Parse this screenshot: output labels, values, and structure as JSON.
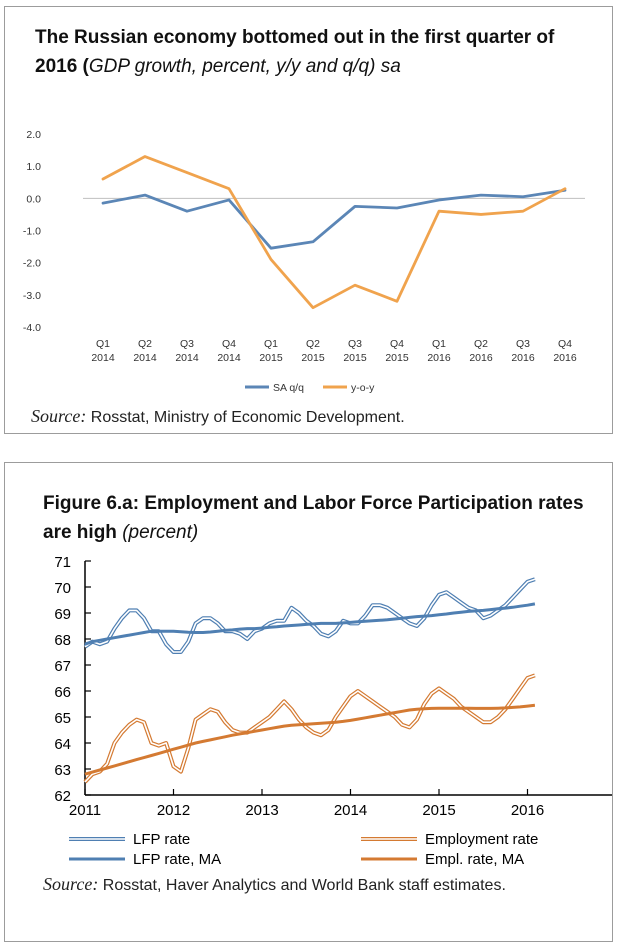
{
  "chart1": {
    "title_bold": "The Russian economy bottomed out in the first quarter of 2016 (",
    "title_italic": "GDP growth, percent, y/y and q/q) sa",
    "source_label": "Source:",
    "source_text": " Rosstat, Ministry of Economic Development.",
    "colors": {
      "series1": "#5b86b6",
      "series2": "#f0a34d",
      "axis": "#bfbfbf"
    }
  },
  "chart2": {
    "title_bold": "Figure 6.a: Employment and Labor Force Participation rates are high ",
    "title_italic": "(percent)",
    "source_label": "Source:",
    "source_text": " Rosstat, Haver Analytics and World Bank staff estimates.",
    "colors": {
      "lfp": "#4f7fb2",
      "emp": "#d47a32",
      "axis": "#000000"
    }
  },
  "chart_data": [
    {
      "type": "line",
      "title": "The Russian economy bottomed out in the first quarter of 2016 (GDP growth, percent, y/y and q/q) sa",
      "categories": [
        "Q1 2014",
        "Q2 2014",
        "Q3 2014",
        "Q4 2014",
        "Q1 2015",
        "Q2 2015",
        "Q3 2015",
        "Q4 2015",
        "Q1 2016",
        "Q2 2016",
        "Q3 2016",
        "Q4 2016"
      ],
      "ylim": [
        -4.0,
        2.0
      ],
      "yticks": [
        "2.0",
        "1.0",
        "0.0",
        "-1.0",
        "-2.0",
        "-3.0",
        "-4.0"
      ],
      "grid": false,
      "legend": "bottom",
      "series": [
        {
          "name": "SA q/q",
          "values": [
            -0.15,
            0.1,
            -0.4,
            -0.05,
            -1.55,
            -1.35,
            -0.25,
            -0.3,
            -0.05,
            0.1,
            0.05,
            0.25
          ]
        },
        {
          "name": "y-o-y",
          "values": [
            0.6,
            1.3,
            0.8,
            0.3,
            -1.9,
            -3.4,
            -2.7,
            -3.2,
            -0.4,
            -0.5,
            -0.4,
            0.3
          ]
        }
      ]
    },
    {
      "type": "line",
      "title": "Figure 6.a: Employment and Labor Force Participation rates are high (percent)",
      "x_start": 2011,
      "xticks": [
        "2011",
        "2012",
        "2013",
        "2014",
        "2015",
        "2016"
      ],
      "ylim": [
        62,
        71
      ],
      "yticks": [
        "71",
        "70",
        "69",
        "68",
        "67",
        "66",
        "65",
        "64",
        "63",
        "62"
      ],
      "grid": false,
      "legend": "bottom",
      "series": [
        {
          "name": "LFP rate",
          "style": "double",
          "values": [
            67.7,
            67.9,
            67.8,
            67.9,
            68.4,
            68.8,
            69.1,
            69.1,
            68.8,
            68.3,
            68.3,
            67.8,
            67.5,
            67.5,
            67.9,
            68.6,
            68.8,
            68.8,
            68.6,
            68.3,
            68.3,
            68.2,
            68.0,
            68.3,
            68.4,
            68.6,
            68.7,
            68.7,
            69.2,
            69.0,
            68.7,
            68.5,
            68.2,
            68.1,
            68.3,
            68.7,
            68.6,
            68.6,
            68.9,
            69.3,
            69.3,
            69.2,
            69.0,
            68.8,
            68.6,
            68.5,
            68.8,
            69.3,
            69.7,
            69.8,
            69.6,
            69.4,
            69.2,
            69.1,
            68.8,
            68.9,
            69.1,
            69.3,
            69.6,
            69.9,
            70.2,
            70.3
          ]
        },
        {
          "name": "Employment rate",
          "style": "double",
          "values": [
            62.5,
            62.8,
            62.9,
            63.2,
            64.0,
            64.4,
            64.7,
            64.9,
            64.8,
            64.0,
            63.9,
            64.0,
            63.1,
            62.9,
            63.8,
            64.9,
            65.1,
            65.3,
            65.2,
            64.8,
            64.5,
            64.4,
            64.4,
            64.6,
            64.8,
            65.0,
            65.3,
            65.6,
            65.3,
            64.9,
            64.6,
            64.4,
            64.3,
            64.5,
            65.0,
            65.4,
            65.8,
            66.0,
            65.8,
            65.6,
            65.4,
            65.2,
            65.0,
            64.7,
            64.6,
            64.9,
            65.5,
            65.9,
            66.1,
            65.9,
            65.7,
            65.4,
            65.2,
            65.0,
            64.8,
            64.8,
            65.0,
            65.3,
            65.7,
            66.1,
            66.5,
            66.6
          ]
        },
        {
          "name": "LFP rate, MA",
          "style": "single",
          "values": [
            67.8,
            67.9,
            67.95,
            68.0,
            68.05,
            68.1,
            68.15,
            68.2,
            68.25,
            68.3,
            68.3,
            68.3,
            68.3,
            68.28,
            68.26,
            68.25,
            68.25,
            68.27,
            68.3,
            68.33,
            68.35,
            68.38,
            68.4,
            68.4,
            68.42,
            68.45,
            68.47,
            68.5,
            68.52,
            68.54,
            68.56,
            68.58,
            68.6,
            68.6,
            68.6,
            68.62,
            68.64,
            68.66,
            68.68,
            68.7,
            68.72,
            68.74,
            68.77,
            68.8,
            68.83,
            68.86,
            68.88,
            68.9,
            68.93,
            68.96,
            69.0,
            69.03,
            69.06,
            69.08,
            69.1,
            69.13,
            69.16,
            69.19,
            69.22,
            69.26,
            69.3,
            69.35
          ]
        },
        {
          "name": "Empl. rate, MA",
          "style": "single",
          "values": [
            62.8,
            62.88,
            62.96,
            63.04,
            63.12,
            63.2,
            63.28,
            63.36,
            63.44,
            63.52,
            63.6,
            63.68,
            63.76,
            63.84,
            63.92,
            64.0,
            64.06,
            64.12,
            64.18,
            64.24,
            64.3,
            64.35,
            64.4,
            64.45,
            64.5,
            64.55,
            64.6,
            64.65,
            64.68,
            64.7,
            64.72,
            64.74,
            64.76,
            64.78,
            64.8,
            64.83,
            64.87,
            64.92,
            64.97,
            65.02,
            65.07,
            65.12,
            65.17,
            65.22,
            65.27,
            65.3,
            65.32,
            65.33,
            65.34,
            65.34,
            65.34,
            65.34,
            65.34,
            65.33,
            65.33,
            65.33,
            65.34,
            65.35,
            65.37,
            65.39,
            65.42,
            65.45
          ]
        }
      ]
    }
  ]
}
